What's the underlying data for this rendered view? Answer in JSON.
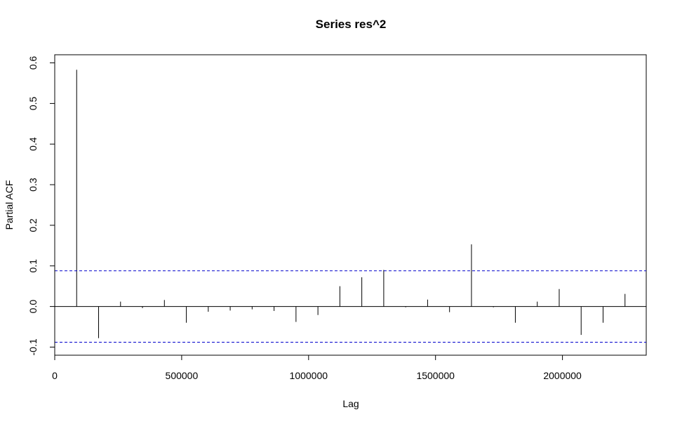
{
  "chart_data": {
    "type": "bar",
    "title": "Series  res^2",
    "xlabel": "Lag",
    "ylabel": "Partial ACF",
    "xlim": [
      0,
      2330000
    ],
    "ylim": [
      -0.12,
      0.62
    ],
    "x_ticks": [
      0,
      500000,
      1000000,
      1500000,
      2000000
    ],
    "x_tick_labels": [
      "0",
      "500000",
      "1000000",
      "1500000",
      "2000000"
    ],
    "y_ticks": [
      -0.1,
      0.0,
      0.1,
      0.2,
      0.3,
      0.4,
      0.5,
      0.6
    ],
    "y_tick_labels": [
      "-0.1",
      "0.0",
      "0.1",
      "0.2",
      "0.3",
      "0.4",
      "0.5",
      "0.6"
    ],
    "confidence_bounds": [
      0.088,
      -0.088
    ],
    "bound_color": "#0000cc",
    "bar_color": "#000000",
    "grid": false,
    "series": [
      {
        "x": [
          86400,
          172800,
          259200,
          345600,
          432000,
          518400,
          604800,
          691200,
          777600,
          864000,
          950400,
          1036800,
          1123200,
          1209600,
          1296000,
          1382400,
          1468800,
          1555200,
          1641600,
          1728000,
          1814400,
          1900800,
          1987200,
          2073600,
          2160000,
          2246400
        ],
        "values": [
          0.583,
          -0.078,
          0.012,
          -0.004,
          0.016,
          -0.04,
          -0.013,
          -0.01,
          -0.007,
          -0.011,
          -0.038,
          -0.021,
          0.05,
          0.072,
          0.09,
          -0.002,
          0.017,
          -0.014,
          0.153,
          -0.002,
          -0.04,
          0.012,
          0.043,
          -0.07,
          -0.04,
          0.031
        ]
      }
    ]
  }
}
